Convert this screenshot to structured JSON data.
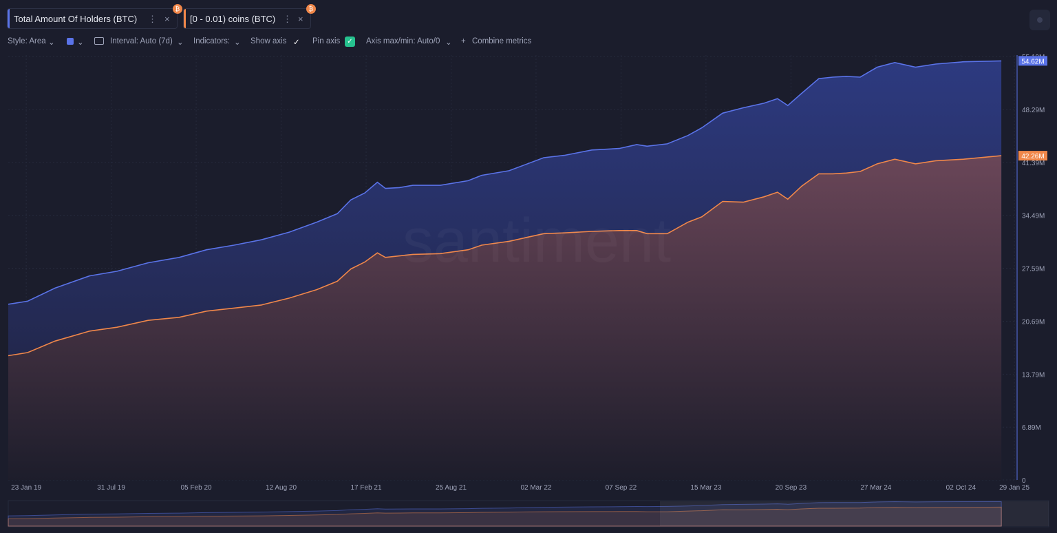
{
  "toolbar": {
    "style": "Style: Area",
    "interval": "Interval: Auto (7d)",
    "indicators": "Indicators:",
    "show_axis": "Show axis",
    "pin_axis": "Pin axis",
    "axis_max_min": "Axis max/min: Auto/0",
    "combine_metrics": "Combine metrics"
  },
  "watermark": "santiment",
  "chart_data": {
    "type": "area",
    "grid": true,
    "x": [
      "2018-12-14",
      "2019-01-26",
      "2019-03-28",
      "2019-06-13",
      "2019-08-13",
      "2019-10-21",
      "2019-12-29",
      "2020-02-28",
      "2020-04-29",
      "2020-06-29",
      "2020-08-30",
      "2020-10-30",
      "2020-12-15",
      "2021-01-14",
      "2021-02-14",
      "2021-03-14",
      "2021-04-01",
      "2021-05-02",
      "2021-06-01",
      "2021-08-01",
      "2021-10-02",
      "2021-11-01",
      "2022-01-01",
      "2022-03-19",
      "2022-05-04",
      "2022-07-04",
      "2022-09-03",
      "2022-10-12",
      "2022-11-04",
      "2022-12-19",
      "2023-02-03",
      "2023-03-06",
      "2023-04-21",
      "2023-06-06",
      "2023-07-22",
      "2023-08-21",
      "2023-09-13",
      "2023-10-14",
      "2023-11-21",
      "2023-12-22",
      "2024-01-21",
      "2024-02-21",
      "2024-03-30",
      "2024-05-08",
      "2024-06-23",
      "2024-08-07",
      "2024-10-08",
      "2024-12-31"
    ],
    "xlim": [
      "2018-12-14",
      "2025-02-04"
    ],
    "xticks": [
      {
        "value": "2019-01-23",
        "label": "23 Jan 19"
      },
      {
        "value": "2019-07-31",
        "label": "31 Jul 19"
      },
      {
        "value": "2020-02-05",
        "label": "05 Feb 20"
      },
      {
        "value": "2020-08-12",
        "label": "12 Aug 20"
      },
      {
        "value": "2021-02-17",
        "label": "17 Feb 21"
      },
      {
        "value": "2021-08-25",
        "label": "25 Aug 21"
      },
      {
        "value": "2022-03-02",
        "label": "02 Mar 22"
      },
      {
        "value": "2022-09-07",
        "label": "07 Sep 22"
      },
      {
        "value": "2023-03-15",
        "label": "15 Mar 23"
      },
      {
        "value": "2023-09-20",
        "label": "20 Sep 23"
      },
      {
        "value": "2024-03-27",
        "label": "27 Mar 24"
      },
      {
        "value": "2024-10-02",
        "label": "02 Oct 24"
      },
      {
        "value": "2025-01-29",
        "label": "29 Jan 25"
      }
    ],
    "ylim": [
      0,
      55.19
    ],
    "yticks": [
      0,
      {
        "value": 6.89,
        "label": "6.89M"
      },
      {
        "value": 13.79,
        "label": "13.79M"
      },
      {
        "value": 20.69,
        "label": "20.69M"
      },
      {
        "value": 27.59,
        "label": "27.59M"
      },
      {
        "value": 34.49,
        "label": "34.49M"
      },
      {
        "value": 41.39,
        "label": "41.39M"
      },
      {
        "value": 48.29,
        "label": "48.29M"
      },
      {
        "value": 55.19,
        "label": "55.19M"
      }
    ],
    "series": [
      {
        "name": "Total Amount Of Holders (BTC)",
        "color": "#5a73e8",
        "last_label": "54.62M",
        "values": [
          22.9,
          23.3,
          25.0,
          26.6,
          27.2,
          28.3,
          29.0,
          30.0,
          30.6,
          31.3,
          32.3,
          33.6,
          34.7,
          36.5,
          37.4,
          38.8,
          38.0,
          38.1,
          38.4,
          38.4,
          39.0,
          39.7,
          40.3,
          42.0,
          42.3,
          43.0,
          43.2,
          43.7,
          43.5,
          43.8,
          44.9,
          45.9,
          47.8,
          48.5,
          49.1,
          49.7,
          48.8,
          50.4,
          52.3,
          52.5,
          52.6,
          52.5,
          53.8,
          54.4,
          53.8,
          54.2,
          54.5,
          54.62
        ]
      },
      {
        "name": "[0 - 0.01) coins (BTC)",
        "color": "#f0874a",
        "last_label": "42.26M",
        "values": [
          16.2,
          16.6,
          18.1,
          19.4,
          19.9,
          20.8,
          21.2,
          22.0,
          22.4,
          22.8,
          23.7,
          24.8,
          25.9,
          27.5,
          28.4,
          29.6,
          29.0,
          29.2,
          29.4,
          29.5,
          30.0,
          30.6,
          31.1,
          32.1,
          32.2,
          32.4,
          32.5,
          32.5,
          32.1,
          32.1,
          33.6,
          34.3,
          36.3,
          36.2,
          36.9,
          37.5,
          36.6,
          38.3,
          39.9,
          39.9,
          40.0,
          40.2,
          41.2,
          41.8,
          41.2,
          41.6,
          41.8,
          42.26
        ]
      }
    ]
  }
}
